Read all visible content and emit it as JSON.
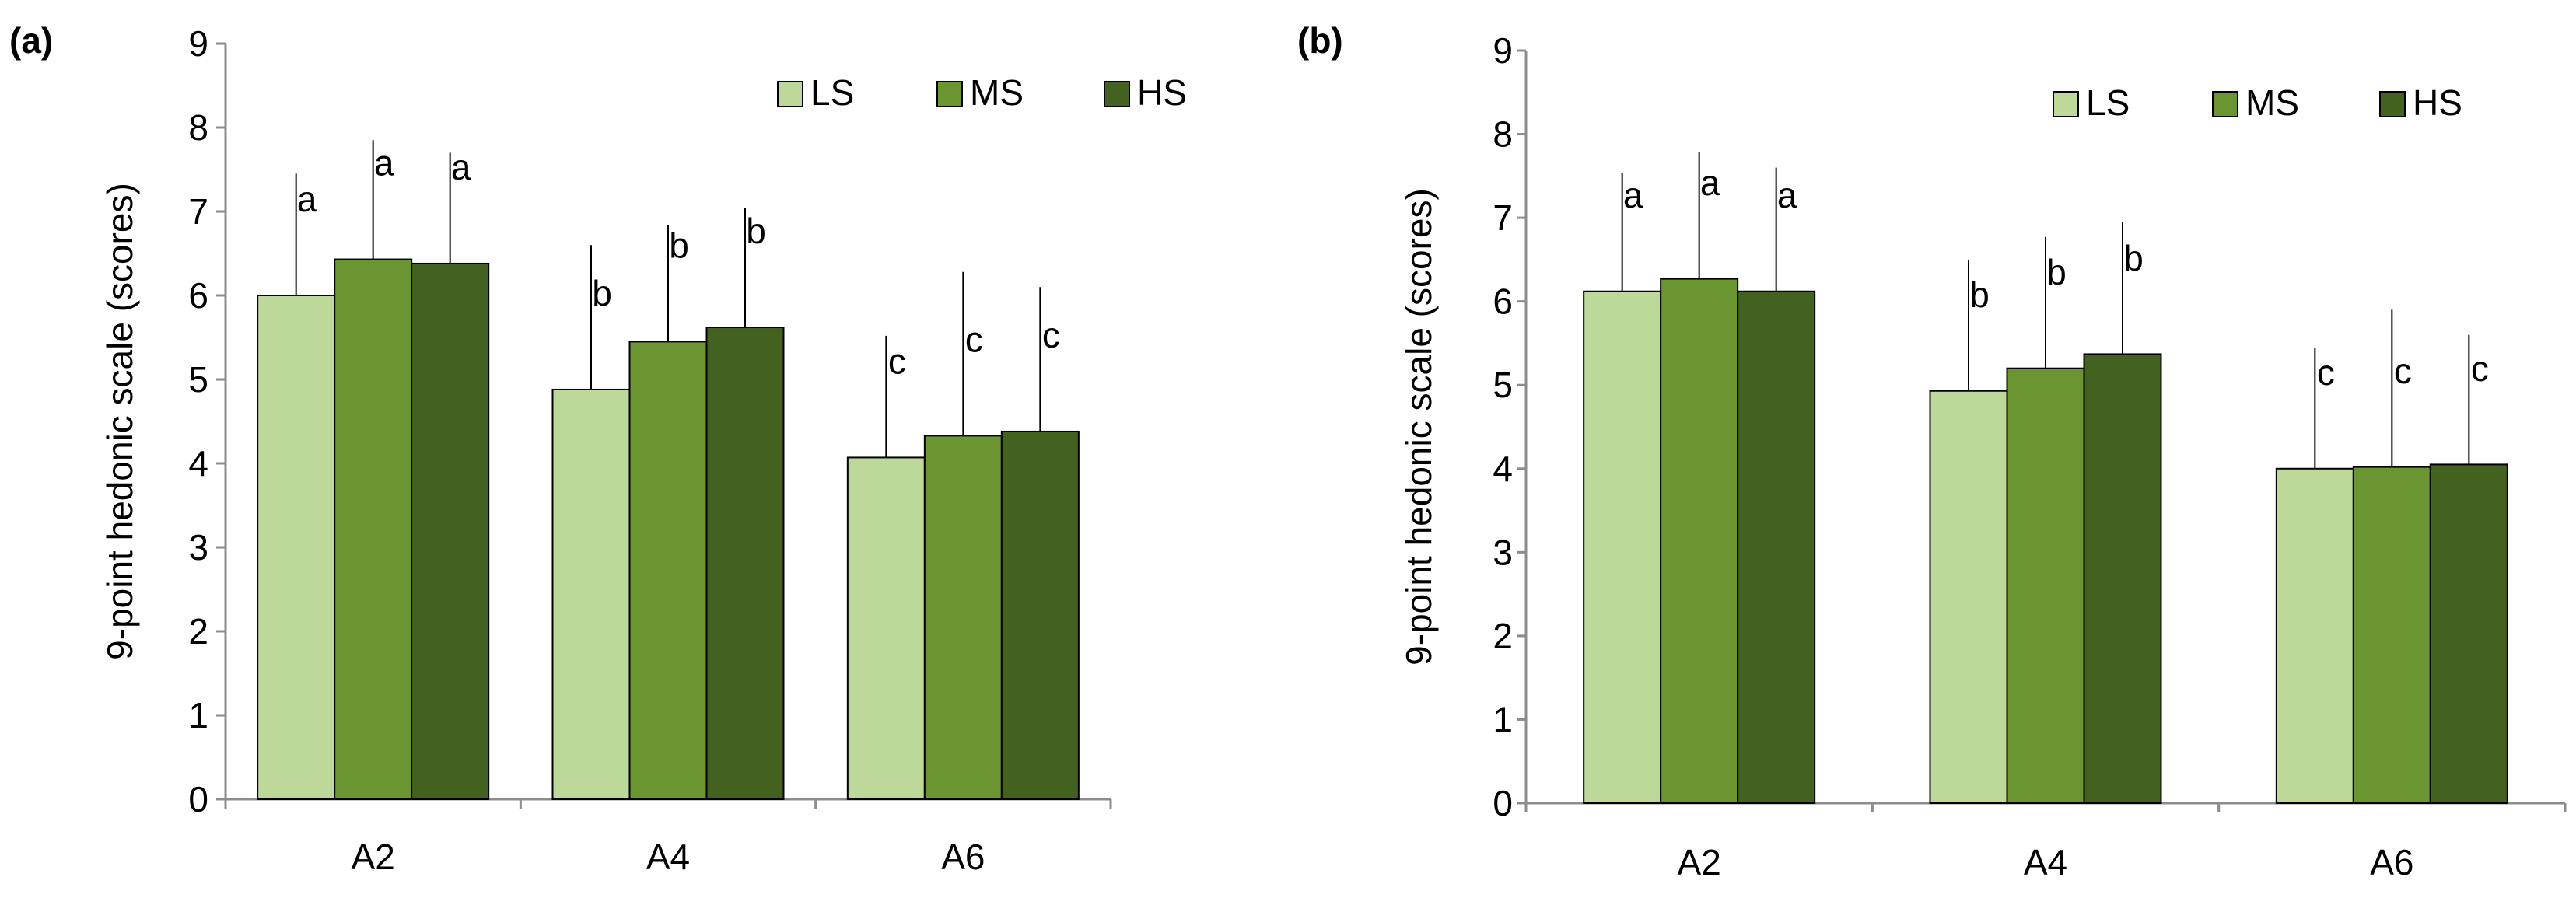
{
  "colors": {
    "LS": "#bcd99a",
    "MS": "#6a9530",
    "HS": "#436220",
    "axis": "#8c8c8c",
    "text": "#000000"
  },
  "chart_data": [
    {
      "type": "bar",
      "panel_label": "(a)",
      "title": "",
      "xlabel": "",
      "ylabel": "9-point hedonic scale (scores)",
      "ylim": [
        0,
        9
      ],
      "yticks": [
        "0",
        "1",
        "2",
        "3",
        "4",
        "5",
        "6",
        "7",
        "8",
        "9"
      ],
      "grid": false,
      "legend": {
        "placement": "top-right",
        "labels": [
          "LS",
          "MS",
          "HS"
        ]
      },
      "categories": [
        "A2",
        "A4",
        "A6"
      ],
      "series": [
        {
          "name": "LS",
          "values": [
            6.0,
            4.88,
            4.07
          ],
          "errors": [
            1.45,
            1.72,
            1.45
          ],
          "letters": [
            "a",
            "b",
            "c"
          ]
        },
        {
          "name": "MS",
          "values": [
            6.43,
            5.45,
            4.33
          ],
          "errors": [
            1.42,
            1.39,
            1.95
          ],
          "letters": [
            "a",
            "b",
            "c"
          ]
        },
        {
          "name": "HS",
          "values": [
            6.38,
            5.62,
            4.38
          ],
          "errors": [
            1.32,
            1.42,
            1.72
          ],
          "letters": [
            "a",
            "b",
            "c"
          ]
        }
      ]
    },
    {
      "type": "bar",
      "panel_label": "(b)",
      "title": "",
      "xlabel": "",
      "ylabel": "9-point hedonic scale (scores)",
      "ylim": [
        0,
        9
      ],
      "yticks": [
        "0",
        "1",
        "2",
        "3",
        "4",
        "5",
        "6",
        "7",
        "8",
        "9"
      ],
      "grid": false,
      "legend": {
        "placement": "top-right",
        "labels": [
          "LS",
          "MS",
          "HS"
        ]
      },
      "categories": [
        "A2",
        "A4",
        "A6"
      ],
      "series": [
        {
          "name": "LS",
          "values": [
            6.12,
            4.93,
            4.0
          ],
          "errors": [
            1.42,
            1.57,
            1.45
          ],
          "letters": [
            "a",
            "b",
            "c"
          ]
        },
        {
          "name": "MS",
          "values": [
            6.27,
            5.2,
            4.02
          ],
          "errors": [
            1.52,
            1.57,
            1.88
          ],
          "letters": [
            "a",
            "b",
            "c"
          ]
        },
        {
          "name": "HS",
          "values": [
            6.12,
            5.37,
            4.05
          ],
          "errors": [
            1.48,
            1.58,
            1.55
          ],
          "letters": [
            "a",
            "b",
            "c"
          ]
        }
      ]
    }
  ]
}
